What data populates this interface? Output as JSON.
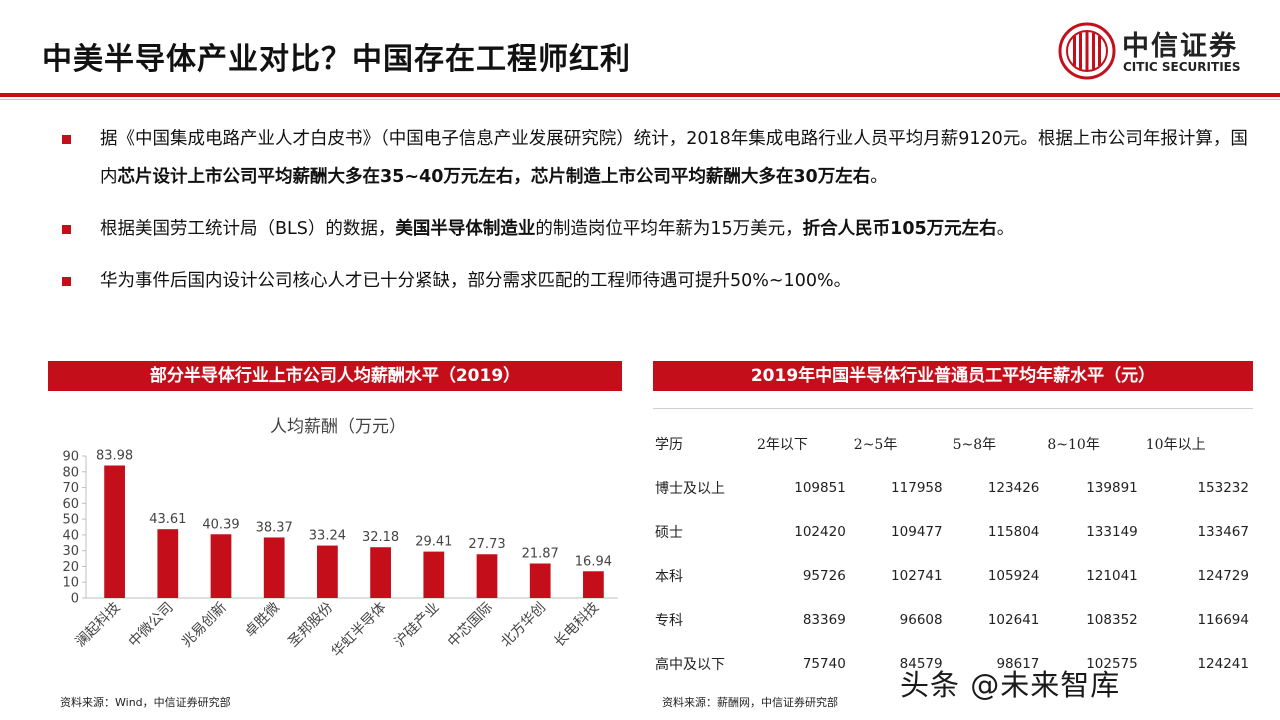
{
  "header": {
    "title": "中美半导体产业对比？中国存在工程师红利",
    "logo_cn": "中信证券",
    "logo_en": "CITIC SECURITIES",
    "accent_color": "#c40f1b"
  },
  "bullets": [
    {
      "segments": [
        {
          "text": "据《中国集成电路产业人才白皮书》（中国电子信息产业发展研究院）统计，2018年集成电路行业人员平均月薪9120元。根据上市公司年报计算，国内",
          "bold": false
        },
        {
          "text": "芯片设计上市公司平均薪酬大多在35~40万元左右，芯片制造上市公司平均薪酬大多在30万左右",
          "bold": true
        },
        {
          "text": "。",
          "bold": false
        }
      ]
    },
    {
      "segments": [
        {
          "text": "根据美国劳工统计局（BLS）的数据，",
          "bold": false
        },
        {
          "text": "美国半导体制造业",
          "bold": true
        },
        {
          "text": "的制造岗位平均年薪为15万美元，",
          "bold": false
        },
        {
          "text": "折合人民币105万元左右",
          "bold": true
        },
        {
          "text": "。",
          "bold": false
        }
      ]
    },
    {
      "segments": [
        {
          "text": "华为事件后国内设计公司核心人才已十分紧缺，部分需求匹配的工程师待遇可提升50%~100%。",
          "bold": false
        }
      ]
    }
  ],
  "left_panel": {
    "banner": "部分半导体行业上市公司人均薪酬水平（2019）",
    "source": "资料来源：Wind，中信证券研究部"
  },
  "chart_data": {
    "type": "bar",
    "title": "人均薪酬（万元）",
    "categories": [
      "澜起科技",
      "中微公司",
      "兆易创新",
      "卓胜微",
      "圣邦股份",
      "华虹半导体",
      "沪硅产业",
      "中芯国际",
      "北方华创",
      "长电科技"
    ],
    "values": [
      83.98,
      43.61,
      40.39,
      38.37,
      33.24,
      32.18,
      29.41,
      27.73,
      21.87,
      16.94
    ],
    "value_labels": [
      "83.98",
      "43.61",
      "40.39",
      "38.37",
      "33.24",
      "32.18",
      "29.41",
      "27.73",
      "21.87",
      "16.94"
    ],
    "ylim": [
      0,
      90
    ],
    "yticks": [
      "0",
      "10",
      "20",
      "30",
      "40",
      "50",
      "60",
      "70",
      "80",
      "90"
    ],
    "bar_color": "#c40f1b",
    "xlabel": "",
    "ylabel": "",
    "grid": false
  },
  "right_panel": {
    "banner": "2019年中国半导体行业普通员工平均年薪水平（元）",
    "source": "资料来源：薪酬网，中信证券研究部",
    "table": {
      "headers": [
        "学历",
        "2年以下",
        "2~5年",
        "5~8年",
        "8~10年",
        "10年以上"
      ],
      "rows": [
        {
          "label": "博士及以上",
          "values": [
            "109851",
            "117958",
            "123426",
            "139891",
            "153232"
          ]
        },
        {
          "label": "硕士",
          "values": [
            "102420",
            "109477",
            "115804",
            "133149",
            "133467"
          ]
        },
        {
          "label": "本科",
          "values": [
            "95726",
            "102741",
            "105924",
            "121041",
            "124729"
          ]
        },
        {
          "label": "专科",
          "values": [
            "83369",
            "96608",
            "102641",
            "108352",
            "116694"
          ]
        },
        {
          "label": "高中及以下",
          "values": [
            "75740",
            "84579",
            "98617",
            "102575",
            "124241"
          ]
        }
      ]
    }
  },
  "watermark": "头条 @未来智库"
}
